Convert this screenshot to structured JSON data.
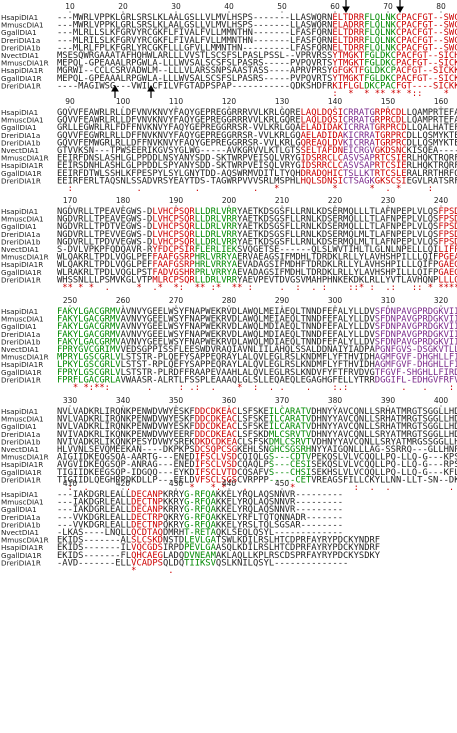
{
  "blocks": [
    {
      "ruler": [
        10,
        20,
        30,
        40,
        50,
        60,
        70,
        80
      ],
      "rows": [
        {
          "name": "HsapiDIA1",
          "seq": "---MWRLVPPKLGRLSRSLKLAALGSLLVLMVLHSPS-------LLASWQRNELTDRRFLQLNKCPACFGT--SWCRRFLN"
        },
        {
          "name": "MmuscDIA1",
          "seq": "---MWRLVPPKLGRLSRSLKLAALGSLLVLMVLHSPS-------LLASWQRNELADRRFLQLNKCPACFGT--SWCRRFLN"
        },
        {
          "name": "GgallDIA1",
          "seq": "---MLRLLSLKFGRVYRCGKFLFIVALFVLLMMNTHN-------LFASFQRNELTDRRFLQLNKCPACFGT--SWCRRFLS"
        },
        {
          "name": "DreriDIA1a",
          "seq": "---MLRILSLKFGRVYRCGKFLFIVALFVLLMMNTHN-------LFASFQRNELTDRRFLQLNKCPACFGT--SWCRRFLN"
        },
        {
          "name": "DreriDIA1b",
          "seq": "---MLRLFPLKFGRLYRCGKFLLLGFVLLMMNTHN---------LFASFQRNELTDRRFLQLNKCPACFGT--SWCRRFLN"
        },
        {
          "name": "NvectDIA1",
          "seq": "MSESQWRGAAATAFHQHWLARLLLVVSTLSCSFSLPASLPSSL--VPRVRSSYTMGKTFGLDKCPACFGT--SICHKFWK"
        },
        {
          "name": "MmuscDIA1R",
          "seq": "MEPQL-GPEAAALRPGWLA-LLLWVSALSCSFSLPASRS-----PVPQVRTSYTMGKTFGLDKCPACFGT--SICKKFFK"
        },
        {
          "name": "HsapiDIA1R",
          "seq": "MGRWI--CCLCSRVADWLM--LLLVLARSSNPSAASTASS----APRVPRSYGFGKTFGLDKCPACFGT--SICKKFFK"
        },
        {
          "name": "GgallDIA1R",
          "seq": "MEPQL-GPEAAALRPGWLA-LLLWVSALSCSFSLPASRS-----PVPQVRTSYTMGKTFGLDKCPACFGT--SICKKFFK"
        },
        {
          "name": "DreriDIA1R",
          "seq": "----MAGIWSG---VWILCFILVFGTADPSPAP-----------QDKSHDFRKIFLGLDKCPACFGT----SICKKFFK"
        }
      ],
      "conservation": "                                                    :  *  * ** ** *::    *  *  :"
    },
    {
      "ruler": [
        90,
        100,
        110,
        120,
        130,
        140,
        150,
        160
      ],
      "rows": [
        {
          "name": "HsapiDIA1",
          "seq": "GQVVFEAWRLRLLDFVNVKNVYFAQYGEPREGGRRRVVLKRLGQRELAQLDQSICRRATGRPRCDLLQAMPRTEFARL"
        },
        {
          "name": "MmuscDIA1",
          "seq": "GQVVFEAWRLRLLDFVNVKNVYFAQYGEPREGGRRRVVLKRLGQRELAQLDQSICRRATGRPRCDLLQAMPRTEFARL"
        },
        {
          "name": "GgallDIA1",
          "seq": "GRLLEGWRLRLFDFFNVKNVYFAQYGEPREGGRRSR-VVLKRLGQAELADIDAKICRRATGRPRCDLLQALHATEFASL"
        },
        {
          "name": "DreriDIA1a",
          "seq": "GQVVFEGWRLRLLDFFNVKNVYFAQYGEPREGGRRSR-VVLKRLGQAELADIDAKICRRATGRPRCDLLQSMYKTEFAKL"
        },
        {
          "name": "DreriDIA1b",
          "seq": "GQVVFEMWGRLRLLDFFNVKNVYFAQYGEPREGGRRSR-VVLKRLGQREAQLDVKICRRATGRPRCDLLQSMYKTEFAKL"
        },
        {
          "name": "NvectDIA1",
          "seq": "GTVVKSN---TPWSEERIKGVSYGLWG-----AVKGRVVLKTLGTSSELTAFDNEICRGVGKDSNCKISQEA----WD--"
        },
        {
          "name": "MmuscDIA1R",
          "seq": "EEIRFDNSLASHLGLPPDDLNSYANYSDD-SKTWRPVEISQLVRYGIDSRRCLCASVSAPRTCSIERLHQKTRQRFQK"
        },
        {
          "name": "HsapiDIA1R",
          "seq": "EEIRSDNHLASHLGLPPDDLSPYANYSDD-SKTWRPVEISQLVRYGIDSRRCLCASVSAPRTCSIERLHQKTRQRFQK"
        },
        {
          "name": "GgallDIA1R",
          "seq": "EEIRFDTWLSSHLKFPESPYLSYLGNYTDD-AQSWRMVDITLTYQHDRADQHICTSLLKTRTCSLERALRRTHRFQK"
        },
        {
          "name": "DreriDIA1R",
          "seq": "EEIRFERLTAQSNLSSADVRSYEAYTDS-TAGWRPVVVSRLMSPHLHQLSDNSICTSAGKGKSCSIEGVLRATSRFQT"
        }
      ],
      "conservation": "  :            .          .          .   *          *      *  . *     :    "
    },
    {
      "ruler": [
        170,
        180,
        190,
        200,
        210,
        220,
        230,
        240
      ],
      "rows": [
        {
          "name": "HsapiDIA1",
          "seq": "NGDVRLLTPEAVEGWS-DLVHCPSQRLLDRLVRRYAETKDSGSFLLRNLKDSERMQLLLTLAFNPEPLVLQSFPSDEGWP"
        },
        {
          "name": "MmuscDIA1",
          "seq": "NGDVRLLTPEAVEGWS-DLVHCPSQRLLDRLVRRYAETKDSGSFLLRNLKDSERMQLLLTLAFNPEPLVLQSFPSDEGWP"
        },
        {
          "name": "GgallDIA1",
          "seq": "NGDVRLLTPDTVEGWS-DLVHCPSQRLLDRLVRRYAETKDSGSFLLRNLKDSERMQLLLTLAFNPEPLVLQSFPSDEGWP"
        },
        {
          "name": "DreriDIA1a",
          "seq": "NGDVRLLTPEVVEGWS-DLVHCPSQRLLDRLVRRYAETKDSGSFLLRNLKDSERMQLMLTLAFNPEPLVLQSFPSDEGWP"
        },
        {
          "name": "DreriDIA1b",
          "seq": "NGDVRLLTPDVVEGWS-DLVHCPSQRLLDRLVRRYAETKDSGSFLLRNLKDSERMQLMLTLAFNPEPLVLQSFPSDEGWP"
        },
        {
          "name": "NvectDIA1",
          "seq": "S-DVLVPKPFQDQAVR-RYFDCPSIRFLERLIEKSVQGETSE------QLSLWVTIHLTLGLNLNPELLLQILIFPGEGWP"
        },
        {
          "name": "MmuscDIA1R",
          "seq": "WLQAKRLTPDLVQGLPEFFAAFGSRPHRLVRRYAERVAEAGSIFMDHLTDRDKLRLLYLAVHSHPILLLQIFPGEAGWP"
        },
        {
          "name": "HsapiDIA1R",
          "seq": "WLQAKRLTPDLVQGLPEFFAAFGSRPHRLVRRYAEVADAGSIFMDHFTDRDKLRLLYLAVHSHPILLLQIFPGAEGWP"
        },
        {
          "name": "GgallDIA1R",
          "seq": "WLRAKRLTPDLVQGLPSTFADVGSHRPRLVRRYAEVADAGSIFMDHLTDRDKLRLLYLAVHSHPILLLQIFPGAEGWP"
        },
        {
          "name": "DreriDIA1R",
          "seq": "WHSSNLLLPSMVKGLVTPMLRCPSQRLLDRLVRRYAEVPEVTDVGSVMAHPHNKEKDKLRLLYVTLAVHQNPLLLQILPGTEGWP"
        }
      ],
      "conservation": " ** * *  .     *  .*  *:  ** :*  ** :     .  :  . :    ::* :  .:   :: * **** "
    },
    {
      "ruler": [
        250,
        260,
        270,
        280,
        290,
        300,
        310,
        320
      ],
      "rows": [
        {
          "name": "HsapiDIA1",
          "seq": "FAKYLGACGRMVAVNVYGEELWSYFNAPWEKRVDLAWQLMEIAEQLTNNDFEFALYLLDVSFDNPAVGPRDGKVIIVDAE"
        },
        {
          "name": "MmuscDIA1",
          "seq": "FAKYLGACGRMVAVNVYGEELWSYFNAPWEKRVDLAWQLMEIAEQLTNNDFEFALYLLDVSFDNPAVGPRDGKVIIVDAE"
        },
        {
          "name": "GgallDIA1",
          "seq": "FAKYLGACGRMVAVNVYGEELWSYFNAPWEKRVDLAWQLMDIAEQLTNNDFEFALYLLDVSFDNPAVGPRDGKVIIVDAE"
        },
        {
          "name": "DreriDIA1a",
          "seq": "FAKYLGACGRMVAVNVYGEELWSYFNAPWEKRVDLAWQLMDIAEQLTNNDFEFALYLLDVSFDNPAVGPRDGKVIIVDAE"
        },
        {
          "name": "DreriDIA1b",
          "seq": "FAKYLGACGRMVAVNVYGEELWSYFNAPWEKRVDLAWQLMDIAEQLTNNDFEFALYLLDVSFDNPAVGPRDGKVIIVDAE"
        },
        {
          "name": "NvectDIA1",
          "seq": "FPRYGVCGRIMVVEDSGPPISSFLEESWDVRAQIAVNLIILAHQLSSALDDNAIYIADPAPGNFGVS-DSGKVTLLDLE"
        },
        {
          "name": "MmuscDIA1R",
          "seq": "MPRYLGSCGRLVLSTSTR-PLQEFYSAPPEQRAYLALQVLEGLRSLKNDMFLYFTHVIDHAGMFGVF-DHGHLLFIRDAS"
        },
        {
          "name": "HsapiDIA1R",
          "seq": "LPKYLGSCGRLVLSTST-RPLQEFYSAPPEQRAYLALQVLEGLRSLKNDMFLYFTHVIDHAGMFGVF-DHGHLLFIRDAS"
        },
        {
          "name": "GgallDIA1R",
          "seq": "FPRYLGSCGRLVLSTSTR-PLRDFFRAAPEVAAHLALQVLEGLRSLKNDVFYFTFRVDVGTFGVF-SHGHLLFIRDAS"
        },
        {
          "name": "DreriDIA1R",
          "seq": "FPRFLGACGRLAVWAASR-ALRTLFSSPLEAAAQLGLSLLEQAEQLEGAGHGFELLYTRRDGGIFL-EDHGVFRFVDTS"
        }
      ],
      "conservation": "   * *:**:       .     : .:  .    *  :  . .    .    :.:          .   .    : *"
    },
    {
      "ruler": [
        330,
        340,
        350,
        360,
        370,
        380,
        390,
        400
      ],
      "rows": [
        {
          "name": "HsapiDIA1",
          "seq": "NVLVADKRLIRQNKPENWDVWYESKFDDCDKEACLSFSKEILCARATVDHNYYAVCQNLLSRHATMRGTSGGLLHDPPSE"
        },
        {
          "name": "MmuscDIA1",
          "seq": "NVLVADKRLIRQNKPENWDVWYESKFDDCDKEACLSFSKEILCARATVDHNYYAVCQNLLSRHATMRGTSGGLLHDPPSE"
        },
        {
          "name": "GgallDIA1",
          "seq": "NVLVADKRLIRQNKPENWDVWYESKFDDCDKEACLSFSKEILCARATVDHNYYAVCQNLLSRHATMRGTSGGLLHDPPAD"
        },
        {
          "name": "DreriDIA1a",
          "seq": "NVIVADKRLIKQNKPENWDVWYEERFDDCDKEACLSFSKDMLCSRVTVDHNYYAVCQNLLSRYATMRGTSGGLLHDPPRE"
        },
        {
          "name": "DreriDIA1b",
          "seq": "NVIVADKRLIKQNKPESYDVWYSREKDKDCDKEACLSFSKDMLCSRVTVDHNYYAVCQNLLSRYATMRGSSGGLLHDPPDD"
        },
        {
          "name": "NvectDIA1",
          "seq": "HLVVNLSEVQMEEKAN----DKPKPSDCSQPCSGKEHLSNGHCSGSRHNYYAIGQNLLLAG-SSRRQ---GLLHNPPVA"
        },
        {
          "name": "MmuscDIA1R",
          "seq": "AIGIIDKEQGSQA-AARTG---ENEDIFSCLVSDCQIQLGS---CDTVPEKQSLVLVCQQLLPQ-LLQ-G---KPS--PVQ"
        },
        {
          "name": "HsapiDIA1R",
          "seq": "AVGVIDKEQGSQP-ANRAG---ENEDIFSCLVSDCQAQLPS---CESISEKQSLVLVCQQLLPQ-LLQ-G---RPS--PVQ"
        },
        {
          "name": "GgallDIA1R",
          "seq": "TIGIIDKEEGSQP-IDGQQ---EYKDIFSCLVTDCQSAFVS---CHSISEKHSLVLVCQQLLPQ-LLQ-G---KFLP-PVQ"
        },
        {
          "name": "DreriDIA1R",
          "seq": "TIGIIDLQEGHPPDKDLLP---EELDVFSCLSGSCVRPPP-----CETVREAGSFILLCKYLLNN-LLT-SN--DKQSGLPPA"
        }
      ],
      "conservation": "  :  .       .           *   *.*   .        *           :  .  .           .  *"
    },
    {
      "ruler": [
        410,
        420,
        430,
        440,
        450
      ],
      "rows": [
        {
          "name": "HsapiDIA1",
          "seq": "---IAKDGRLEALLDECANPKRRYG-RFQAKKELYRQLAQSNNVR---------"
        },
        {
          "name": "MmuscDIA1",
          "seq": "---IAKDGRLEALLDECTNPKKRYG-RFQAKKELYRQLAQSNNVR---------"
        },
        {
          "name": "GgallDIA1",
          "seq": "---IAKDGRLEALLDECANPKRRYG-RFQAKKELYRQLAQSNNVR---------"
        },
        {
          "name": "DreriDIA1a",
          "seq": "---VVKDGRLEALLDECTRPQKRYG-RFQAKKELYRFLTQTQNNADR-------"
        },
        {
          "name": "DreriDIA1b",
          "seq": "---VVKDGRLEALLDECTNPQKRYG-RFQAKKELYRSLTQLSGSAR--------"
        },
        {
          "name": "NvectDIA1",
          "seq": "-LKAS----LNQLLQCDTAQDMRHT-RETAQKLSEQLQSYL-------------"
        },
        {
          "name": "MmuscDIA1R",
          "seq": "EKIDS-------ALSLCSKDNSTDLEVLGATSWLKDILRSLHTCDPRFAYRYPDCKYNDRF"
        },
        {
          "name": "HsapiDIA1R",
          "seq": "EKIDS-------ILVQCGDSIRPDPEVLGAASQLKDILRSLHTCDPRFAYRYPDCKYNDRF"
        },
        {
          "name": "GgallDIA1R",
          "seq": "EKIDS-------FLQHCAEGLADQDVNEAMAKLAQLLKPLRSCDSPRFAYRYPDCKYSDKY"
        },
        {
          "name": "DreriDIA1R",
          "seq": "-AVD-------ELLVCADPSQLDQTIIKSVQSLKNILQSYL--------------"
        }
      ],
      "conservation": "              *      ."
    }
  ]
}
